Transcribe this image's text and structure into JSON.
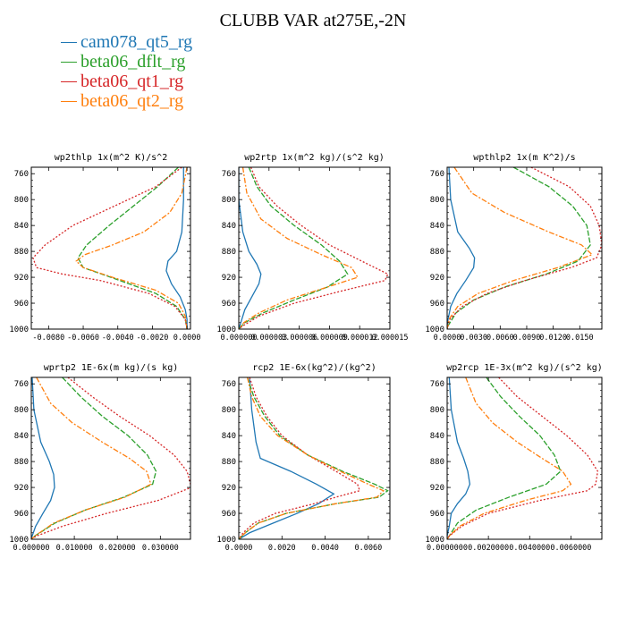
{
  "title": "CLUBB VAR at275E,-2N",
  "legend": [
    {
      "label": "cam078_qt5_rg",
      "color": "#1f77b4"
    },
    {
      "label": "beta06_dflt_rg",
      "color": "#2ca02c"
    },
    {
      "label": "beta06_qt1_rg",
      "color": "#d62728"
    },
    {
      "label": "beta06_qt2_rg",
      "color": "#ff7f0e"
    }
  ],
  "chart_data": [
    {
      "type": "line",
      "title": "wp2thlp  1x(m^2 K)/s^2",
      "xlim": [
        -0.009,
        0.0002
      ],
      "ylim": [
        1000,
        750
      ],
      "xticks": [
        -0.008,
        -0.006,
        -0.004,
        -0.002,
        0.0
      ],
      "xtick_labels": [
        "-0.0080",
        "-0.0060",
        "-0.0040",
        "-0.0020",
        "0.0000"
      ],
      "yticks": [
        760,
        800,
        840,
        880,
        920,
        960,
        1000
      ],
      "series": [
        {
          "name": "cam078_qt5_rg",
          "p": [
            750,
            800,
            850,
            880,
            895,
            910,
            930,
            950,
            970,
            985,
            995,
            1000
          ],
          "v": [
            -0.0002,
            -0.0002,
            -0.0003,
            -0.0006,
            -0.0011,
            -0.0012,
            -0.0009,
            -0.0004,
            -0.0001,
            0.0,
            0.0,
            0.0
          ]
        },
        {
          "name": "beta06_dflt_rg",
          "p": [
            750,
            780,
            810,
            840,
            870,
            890,
            905,
            920,
            945,
            965,
            985,
            1000
          ],
          "v": [
            -0.0005,
            -0.0017,
            -0.0031,
            -0.0045,
            -0.0058,
            -0.0063,
            -0.006,
            -0.0044,
            -0.0018,
            -0.0006,
            -0.0001,
            0.0
          ]
        },
        {
          "name": "beta06_qt1_rg",
          "p": [
            750,
            780,
            810,
            840,
            870,
            890,
            905,
            915,
            925,
            945,
            965,
            985,
            1000
          ],
          "v": [
            -0.0003,
            -0.0018,
            -0.0042,
            -0.0066,
            -0.0082,
            -0.0089,
            -0.0087,
            -0.0072,
            -0.005,
            -0.0022,
            -0.0007,
            -0.0001,
            0.0
          ]
        },
        {
          "name": "beta06_qt2_rg",
          "p": [
            750,
            790,
            820,
            850,
            870,
            885,
            895,
            905,
            920,
            940,
            960,
            980,
            1000
          ],
          "v": [
            0.0,
            -0.0003,
            -0.001,
            -0.0025,
            -0.0043,
            -0.0059,
            -0.0064,
            -0.006,
            -0.0043,
            -0.0018,
            -0.0005,
            -0.0001,
            0.0
          ]
        }
      ]
    },
    {
      "type": "line",
      "title": "wp2rtp  1x(m^2 kg)/(s^2 kg)",
      "xlim": [
        0.0,
        1.5e-05
      ],
      "ylim": [
        1000,
        750
      ],
      "xticks": [
        0.0,
        3e-06,
        6e-06,
        9e-06,
        1.2e-05,
        1.5e-05
      ],
      "xtick_labels": [
        "0.000000",
        "0.000003",
        "0.000006",
        "0.000009",
        "0.000012",
        "0.000015"
      ],
      "yticks": [
        760,
        800,
        840,
        880,
        920,
        960,
        1000
      ],
      "series": [
        {
          "name": "cam078_qt5_rg",
          "p": [
            750,
            800,
            850,
            880,
            900,
            915,
            930,
            950,
            970,
            990,
            1000
          ],
          "v": [
            0.0,
            0.0,
            4e-07,
            1e-06,
            1.8e-06,
            2.2e-06,
            2e-06,
            1.3e-06,
            6e-07,
            2e-07,
            0.0
          ]
        },
        {
          "name": "beta06_dflt_rg",
          "p": [
            750,
            780,
            810,
            840,
            870,
            895,
            915,
            935,
            955,
            975,
            990,
            1000
          ],
          "v": [
            1e-06,
            1.8e-06,
            3.2e-06,
            5.5e-06,
            8.2e-06,
            1e-05,
            1.08e-05,
            8.8e-06,
            5.5e-06,
            2.4e-06,
            6e-07,
            0.0
          ]
        },
        {
          "name": "beta06_qt1_rg",
          "p": [
            750,
            780,
            810,
            840,
            870,
            895,
            915,
            925,
            940,
            960,
            980,
            995,
            1000
          ],
          "v": [
            1.2e-06,
            2e-06,
            3.8e-06,
            6.2e-06,
            9e-06,
            1.22e-05,
            1.48e-05,
            1.45e-05,
            1.05e-05,
            5.5e-06,
            2e-06,
            4e-07,
            0.0
          ]
        },
        {
          "name": "beta06_qt2_rg",
          "p": [
            750,
            790,
            830,
            860,
            885,
            905,
            920,
            935,
            955,
            975,
            990,
            1000
          ],
          "v": [
            4e-07,
            8e-07,
            2.2e-06,
            4.8e-06,
            8.2e-06,
            1.12e-05,
            1.18e-05,
            8.8e-06,
            4.8e-06,
            2e-06,
            5e-07,
            0.0
          ]
        }
      ]
    },
    {
      "type": "line",
      "title": "wpthlp2  1x(m K^2)/s",
      "xlim": [
        0.0,
        0.0175
      ],
      "ylim": [
        1000,
        750
      ],
      "xticks": [
        0.0,
        0.003,
        0.006,
        0.009,
        0.012,
        0.015
      ],
      "xtick_labels": [
        "0.0000",
        "0.0030",
        "0.0060",
        "0.0090",
        "0.0120",
        "0.0150"
      ],
      "yticks": [
        760,
        800,
        840,
        880,
        920,
        960,
        1000
      ],
      "series": [
        {
          "name": "cam078_qt5_rg",
          "p": [
            750,
            800,
            850,
            875,
            890,
            905,
            925,
            945,
            965,
            985,
            1000
          ],
          "v": [
            0.0002,
            0.0004,
            0.0012,
            0.0025,
            0.0031,
            0.003,
            0.0021,
            0.0011,
            0.0004,
            0.0001,
            0.0
          ]
        },
        {
          "name": "beta06_dflt_rg",
          "p": [
            750,
            780,
            810,
            840,
            870,
            895,
            915,
            935,
            955,
            975,
            995,
            1000
          ],
          "v": [
            0.0075,
            0.0115,
            0.0142,
            0.0158,
            0.0162,
            0.0148,
            0.0112,
            0.0065,
            0.003,
            0.001,
            0.0001,
            0.0
          ]
        },
        {
          "name": "beta06_qt1_rg",
          "p": [
            750,
            780,
            810,
            840,
            870,
            890,
            905,
            925,
            945,
            965,
            985,
            1000
          ],
          "v": [
            0.0095,
            0.0138,
            0.0162,
            0.0172,
            0.0175,
            0.0169,
            0.014,
            0.0088,
            0.0045,
            0.0017,
            0.0003,
            0.0
          ]
        },
        {
          "name": "beta06_qt2_rg",
          "p": [
            750,
            790,
            820,
            850,
            870,
            885,
            905,
            925,
            945,
            965,
            985,
            1000
          ],
          "v": [
            0.0008,
            0.0028,
            0.0065,
            0.0115,
            0.0152,
            0.0164,
            0.0125,
            0.0075,
            0.0035,
            0.0012,
            0.0002,
            0.0
          ]
        }
      ]
    },
    {
      "type": "line",
      "title": "wprtp2  1E-6x(m kg)/(s kg)",
      "xlim": [
        0.0,
        0.037
      ],
      "ylim": [
        1000,
        750
      ],
      "xticks": [
        0.0,
        0.01,
        0.02,
        0.03
      ],
      "xtick_labels": [
        "0.000000",
        "0.010000",
        "0.020000",
        "0.030000"
      ],
      "yticks": [
        760,
        800,
        840,
        880,
        920,
        960,
        1000
      ],
      "series": [
        {
          "name": "cam078_qt5_rg",
          "p": [
            750,
            800,
            850,
            880,
            900,
            920,
            940,
            960,
            980,
            995,
            1000
          ],
          "v": [
            0.0002,
            0.0006,
            0.0022,
            0.0042,
            0.0052,
            0.0054,
            0.0045,
            0.0027,
            0.001,
            0.0002,
            0.0
          ]
        },
        {
          "name": "beta06_dflt_rg",
          "p": [
            750,
            780,
            810,
            840,
            870,
            895,
            915,
            935,
            955,
            975,
            995,
            1000
          ],
          "v": [
            0.0072,
            0.0115,
            0.0165,
            0.0225,
            0.027,
            0.029,
            0.0282,
            0.0215,
            0.0125,
            0.0055,
            0.0008,
            0.0
          ]
        },
        {
          "name": "beta06_qt1_rg",
          "p": [
            750,
            780,
            810,
            840,
            870,
            895,
            920,
            940,
            960,
            980,
            995,
            1000
          ],
          "v": [
            0.0085,
            0.0142,
            0.0205,
            0.0275,
            0.0332,
            0.0362,
            0.0372,
            0.0295,
            0.0175,
            0.0072,
            0.0012,
            0.0
          ]
        },
        {
          "name": "beta06_qt2_rg",
          "p": [
            750,
            790,
            820,
            850,
            875,
            895,
            915,
            935,
            955,
            975,
            995,
            1000
          ],
          "v": [
            0.0012,
            0.0045,
            0.0095,
            0.0165,
            0.0228,
            0.0268,
            0.0278,
            0.0218,
            0.0125,
            0.0052,
            0.0008,
            0.0
          ]
        }
      ]
    },
    {
      "type": "line",
      "title": "rcp2  1E-6x(kg^2)/(kg^2)",
      "xlim": [
        0.0,
        0.007
      ],
      "ylim": [
        1000,
        750
      ],
      "xticks": [
        0.0,
        0.002,
        0.004,
        0.006
      ],
      "xtick_labels": [
        "0.0000",
        "0.0020",
        "0.0040",
        "0.0060"
      ],
      "yticks": [
        760,
        800,
        840,
        880,
        920,
        960,
        1000
      ],
      "series": [
        {
          "name": "cam078_qt5_rg",
          "p": [
            750,
            800,
            850,
            875,
            895,
            915,
            930,
            945,
            960,
            975,
            990,
            1000
          ],
          "v": [
            0.0005,
            0.0006,
            0.0008,
            0.001,
            0.0024,
            0.0036,
            0.0044,
            0.0037,
            0.0027,
            0.0016,
            0.0005,
            0.0
          ]
        },
        {
          "name": "beta06_dflt_rg",
          "p": [
            750,
            780,
            810,
            840,
            870,
            895,
            915,
            925,
            935,
            945,
            960,
            975,
            990,
            1000
          ],
          "v": [
            0.0004,
            0.0007,
            0.0012,
            0.0019,
            0.0032,
            0.0048,
            0.0063,
            0.0069,
            0.0065,
            0.0045,
            0.0022,
            0.0009,
            0.0003,
            0.0
          ]
        },
        {
          "name": "beta06_qt1_rg",
          "p": [
            750,
            780,
            810,
            840,
            870,
            895,
            915,
            925,
            935,
            945,
            960,
            975,
            990,
            1000
          ],
          "v": [
            0.0005,
            0.0008,
            0.0013,
            0.002,
            0.0032,
            0.0045,
            0.0055,
            0.0056,
            0.0045,
            0.0035,
            0.0017,
            0.0007,
            0.0002,
            0.0
          ]
        },
        {
          "name": "beta06_qt2_rg",
          "p": [
            750,
            780,
            810,
            840,
            870,
            895,
            915,
            925,
            935,
            945,
            960,
            975,
            990,
            1000
          ],
          "v": [
            0.0004,
            0.0006,
            0.001,
            0.0018,
            0.0032,
            0.0047,
            0.006,
            0.0067,
            0.0064,
            0.0045,
            0.0022,
            0.0009,
            0.0003,
            0.0
          ]
        }
      ]
    },
    {
      "type": "line",
      "title": "wp2rcp  1E-3x(m^2 kg)/(s^2 kg)",
      "xlim": [
        0.0,
        0.0075
      ],
      "ylim": [
        1000,
        750
      ],
      "xticks": [
        0.0,
        0.002,
        0.004,
        0.006
      ],
      "xtick_labels": [
        "0.0000000",
        "0.0020000",
        "0.0040000",
        "0.0060000"
      ],
      "yticks": [
        760,
        800,
        840,
        880,
        920,
        960,
        1000
      ],
      "series": [
        {
          "name": "cam078_qt5_rg",
          "p": [
            750,
            800,
            850,
            875,
            895,
            915,
            930,
            945,
            960,
            980,
            995,
            1000
          ],
          "v": [
            0.0001,
            0.0002,
            0.0005,
            0.0008,
            0.001,
            0.0011,
            0.0009,
            0.0005,
            0.0002,
            0.0001,
            0.0,
            0.0
          ]
        },
        {
          "name": "beta06_dflt_rg",
          "p": [
            750,
            780,
            810,
            840,
            870,
            895,
            915,
            935,
            955,
            975,
            995,
            1000
          ],
          "v": [
            0.0019,
            0.0026,
            0.0035,
            0.0045,
            0.0052,
            0.0055,
            0.0048,
            0.003,
            0.0014,
            0.0005,
            0.0001,
            0.0
          ]
        },
        {
          "name": "beta06_qt1_rg",
          "p": [
            750,
            780,
            810,
            840,
            870,
            895,
            915,
            925,
            940,
            960,
            980,
            995,
            1000
          ],
          "v": [
            0.0025,
            0.0034,
            0.0046,
            0.0058,
            0.0068,
            0.0073,
            0.0072,
            0.0068,
            0.0045,
            0.002,
            0.0007,
            0.0001,
            0.0
          ]
        },
        {
          "name": "beta06_qt2_rg",
          "p": [
            750,
            790,
            820,
            850,
            875,
            895,
            915,
            925,
            940,
            960,
            980,
            995,
            1000
          ],
          "v": [
            0.0009,
            0.0014,
            0.0022,
            0.0034,
            0.0046,
            0.0056,
            0.006,
            0.0056,
            0.0038,
            0.0018,
            0.0006,
            0.0001,
            0.0
          ]
        }
      ]
    }
  ]
}
